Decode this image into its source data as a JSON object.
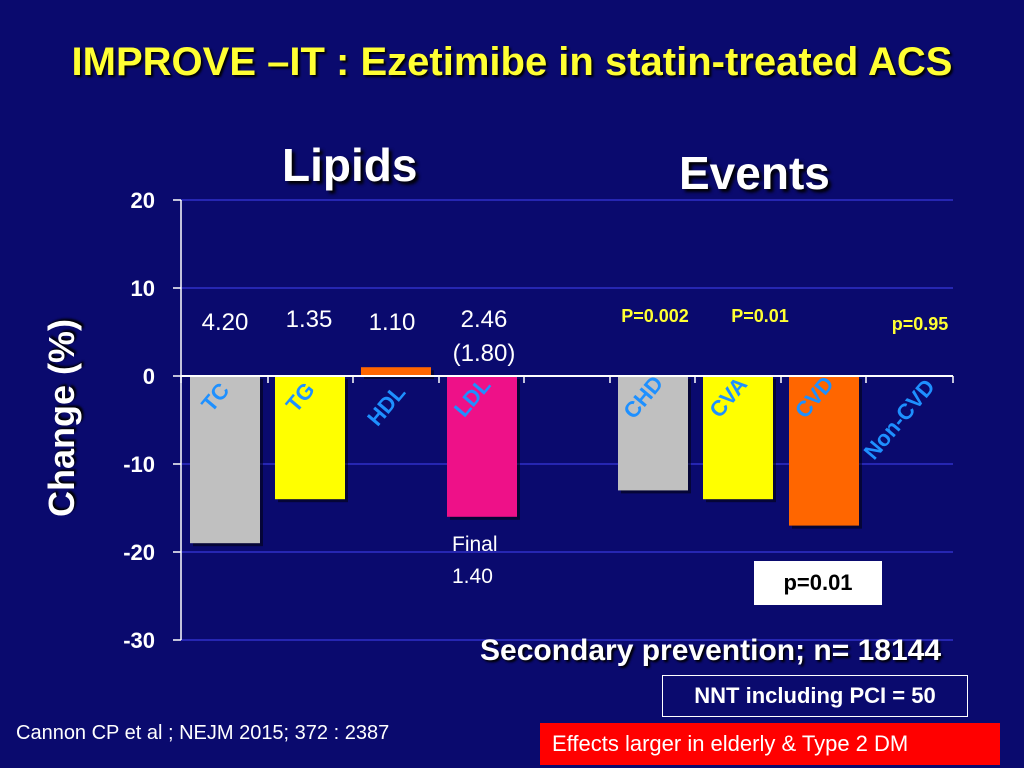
{
  "slide": {
    "title": "IMPROVE –IT : Ezetimibe in statin-treated ACS",
    "lipids_label": "Lipids",
    "events_label": "Events",
    "y_axis_label": "Change (%)",
    "final_label_line1": "Final",
    "final_label_line2": "1.40",
    "pvalue_box": "p=0.01",
    "subtitle": "Secondary prevention; n= 18144",
    "nnt_text": "NNT including PCI = 50",
    "citation": "Cannon CP et al ; NEJM 2015; 372 : 2387",
    "red_note": "Effects larger in elderly & Type 2 DM"
  },
  "colors": {
    "background": "#0a0a6e",
    "title": "#ffff33",
    "category_label": "#1e90ff",
    "grid": "#3030c8",
    "pvalue": "#ffff33"
  },
  "chart_data": {
    "type": "bar",
    "ylabel": "Change (%)",
    "ylim": [
      -30,
      20
    ],
    "yticks": [
      "20",
      "10",
      "0",
      "-10",
      "-20",
      "-30"
    ],
    "grid": true,
    "categories": [
      "TC",
      "TG",
      "HDL",
      "LDL",
      "CHD",
      "CVA",
      "CVD",
      "Non-CVD"
    ],
    "values": [
      -19,
      -14,
      1,
      -16,
      -13,
      -14,
      -17,
      0
    ],
    "bar_colors": [
      "#c0c0c0",
      "#ffff00",
      "#ff6600",
      "#ee1188",
      "#c0c0c0",
      "#ffff00",
      "#ff6600",
      null
    ],
    "value_labels": [
      "4.20",
      "1.35",
      "1.10",
      "2.46\n(1.80)",
      "",
      "",
      "",
      ""
    ],
    "p_values": [
      "",
      "",
      "",
      "",
      "P=0.002",
      "P=0.01",
      "",
      "p=0.95"
    ]
  }
}
